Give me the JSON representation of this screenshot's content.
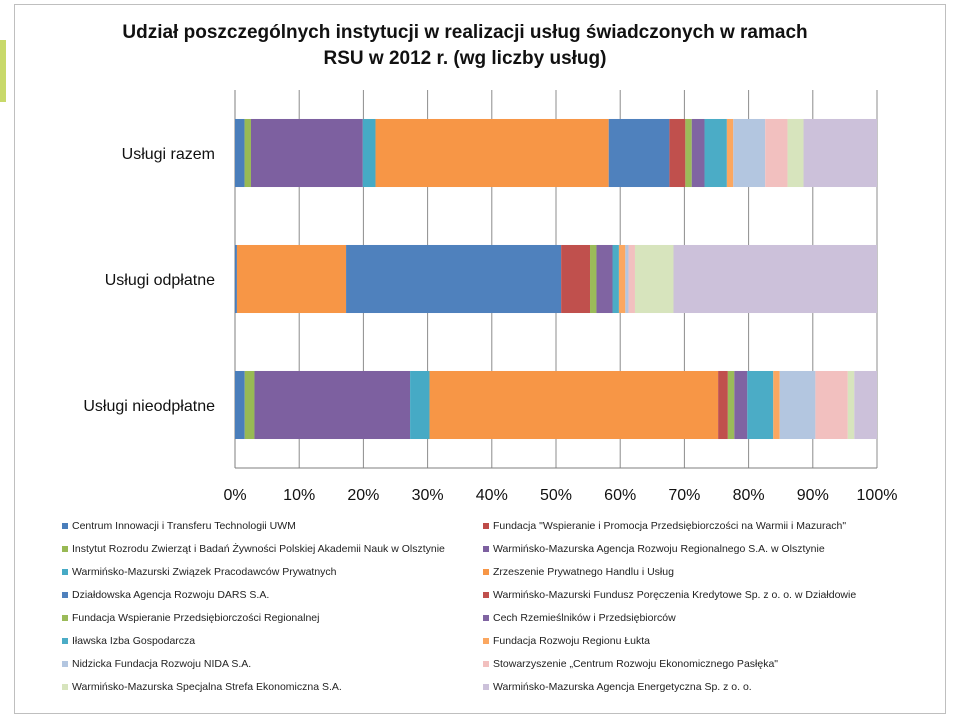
{
  "chart_data": {
    "type": "bar",
    "orientation": "horizontal",
    "stacked": "percent",
    "title": "Udział poszczególnych instytucji w realizacji usług świadczonych w ramach RSU w 2012 r. (wg liczby usług)",
    "title_line1": "Udział poszczególnych instytucji w realizacji usług świadczonych w ramach",
    "title_line2": "RSU w 2012 r. (wg liczby usług)",
    "categories": [
      "Usługi razem",
      "Usługi odpłatne",
      "Usługi nieodpłatne"
    ],
    "xlim": [
      0,
      100
    ],
    "x_ticks": [
      "0%",
      "10%",
      "20%",
      "30%",
      "40%",
      "50%",
      "60%",
      "70%",
      "80%",
      "90%",
      "100%"
    ],
    "grid": true,
    "legend_position": "bottom",
    "series": [
      {
        "name": "Centrum Innowacji i Transferu Technologii UWM",
        "color": "#4a7ebb",
        "values": [
          1.5,
          0.3,
          1.5
        ]
      },
      {
        "name": "Fundacja \"Wspieranie i Promocja Przedsiębiorczości na Warmii i Mazurach\"",
        "color": "#be4b48",
        "values": [
          0,
          0,
          0
        ]
      },
      {
        "name": "Instytut Rozrodu Zwierząt i Badań Żywności Polskiej Akademii Nauk w Olsztynie",
        "color": "#98b954",
        "values": [
          1.0,
          0,
          1.5
        ]
      },
      {
        "name": "Warmińsko-Mazurska Agencja Rozwoju Regionalnego S.A. w Olsztynie",
        "color": "#7d60a0",
        "values": [
          17.5,
          0,
          24.0
        ]
      },
      {
        "name": "Warmińsko-Mazurski Związek Pracodawców Prywatnych",
        "color": "#46aac5",
        "values": [
          2.0,
          0,
          3.0
        ]
      },
      {
        "name": "Zrzeszenie Prywatnego Handlu i Usług",
        "color": "#f79646",
        "values": [
          36.5,
          17.0,
          44.5
        ]
      },
      {
        "name": "Działdowska Agencja Rozwoju DARS S.A.",
        "color": "#4f81bd",
        "values": [
          9.5,
          33.5,
          0
        ]
      },
      {
        "name": "Warmińsko-Mazurski Fundusz Poręczenia Kredytowe Sp. z o. o. w Działdowie",
        "color": "#c0504d",
        "values": [
          2.5,
          4.5,
          1.5
        ]
      },
      {
        "name": "Fundacja Wspieranie Przedsiębiorczości Regionalnej",
        "color": "#9bbb59",
        "values": [
          1.0,
          1.0,
          1.0
        ]
      },
      {
        "name": "Cech Rzemieślników i Przedsiębiorców",
        "color": "#8064a2",
        "values": [
          2.0,
          2.5,
          2.0
        ]
      },
      {
        "name": "Iławska Izba Gospodarcza",
        "color": "#4bacc6",
        "values": [
          3.5,
          1.0,
          4.0
        ]
      },
      {
        "name": "Fundacja Rozwoju Regionu Łukta",
        "color": "#fba760",
        "values": [
          1.0,
          1.0,
          1.0
        ]
      },
      {
        "name": "Nidzicka Fundacja Rozwoju NIDA S.A.",
        "color": "#b3c6e0",
        "values": [
          5.0,
          0.5,
          5.5
        ]
      },
      {
        "name": "Stowarzyszenie „Centrum Rozwoju Ekonomicznego Pasłęka\"",
        "color": "#f2c0bf",
        "values": [
          3.5,
          1.0,
          5.0
        ]
      },
      {
        "name": "Warmińsko-Mazurska Specjalna Strefa Ekonomiczna S.A.",
        "color": "#d7e4bd",
        "values": [
          2.5,
          6.0,
          1.0
        ]
      },
      {
        "name": "Warmińsko-Mazurska Agencja Energetyczna Sp. z o. o.",
        "color": "#ccc1da",
        "values": [
          11.5,
          31.7,
          3.5
        ]
      }
    ]
  }
}
